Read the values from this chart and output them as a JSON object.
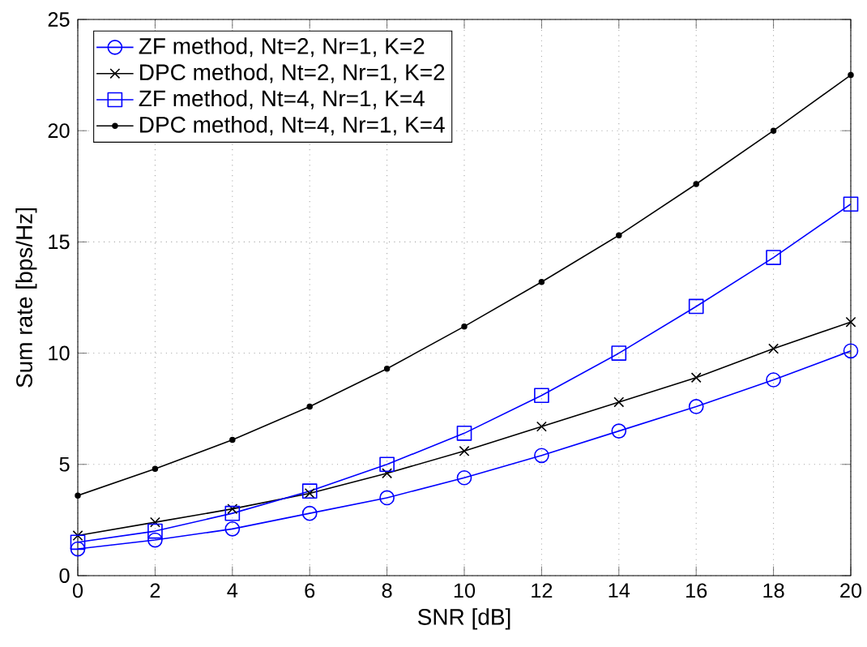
{
  "chart_data": {
    "type": "line",
    "xlabel": "SNR [dB]",
    "ylabel": "Sum rate [bps/Hz]",
    "x": [
      0,
      2,
      4,
      6,
      8,
      10,
      12,
      14,
      16,
      18,
      20
    ],
    "series": [
      {
        "name": "ZF method, Nt=2, Nr=1, K=2",
        "color": "#0000ff",
        "marker": "circle",
        "values": [
          1.2,
          1.6,
          2.1,
          2.8,
          3.5,
          4.4,
          5.4,
          6.5,
          7.6,
          8.8,
          10.1
        ]
      },
      {
        "name": "DPC method, Nt=2, Nr=1, K=2",
        "color": "#000000",
        "marker": "cross",
        "values": [
          1.8,
          2.4,
          3.0,
          3.7,
          4.6,
          5.6,
          6.7,
          7.8,
          8.9,
          10.2,
          11.4
        ]
      },
      {
        "name": "ZF method, Nt=4, Nr=1, K=4",
        "color": "#0000ff",
        "marker": "square",
        "values": [
          1.5,
          2.0,
          2.8,
          3.8,
          5.0,
          6.4,
          8.1,
          10.0,
          12.1,
          14.3,
          16.7
        ]
      },
      {
        "name": "DPC method, Nt=4, Nr=1, K=4",
        "color": "#000000",
        "marker": "point",
        "values": [
          3.6,
          4.8,
          6.1,
          7.6,
          9.3,
          11.2,
          13.2,
          15.3,
          17.6,
          20.0,
          22.5
        ]
      }
    ],
    "xlim": [
      0,
      20
    ],
    "ylim": [
      0,
      25
    ],
    "xticks": [
      0,
      2,
      4,
      6,
      8,
      10,
      12,
      14,
      16,
      18,
      20
    ],
    "yticks": [
      0,
      5,
      10,
      15,
      20,
      25
    ],
    "grid": true,
    "legend": "top left",
    "line_style": "solid"
  }
}
